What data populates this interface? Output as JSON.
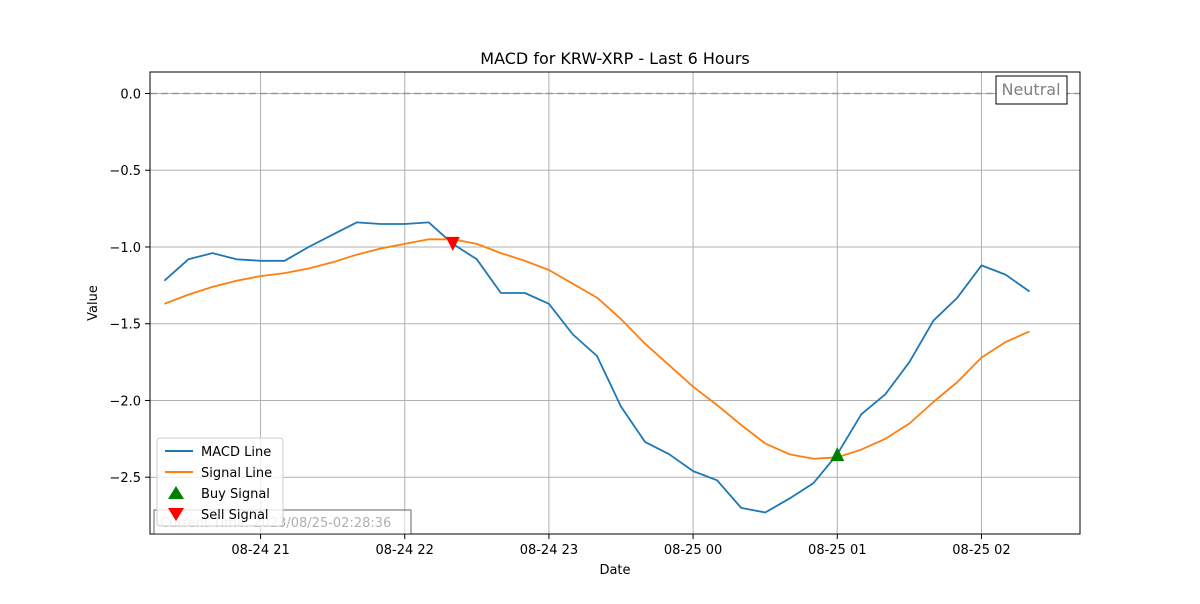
{
  "chart_data": {
    "type": "line",
    "title": "MACD for KRW-XRP - Last 6 Hours",
    "xlabel": "Date",
    "ylabel": "Value",
    "ylim": [
      -2.87,
      0.14
    ],
    "xlim": [
      "2023-08-24 20:14",
      "2023-08-25 02:41"
    ],
    "grid": true,
    "legend_position": "lower-left",
    "x_ticks": [
      "08-24 21",
      "08-24 22",
      "08-24 23",
      "08-25 00",
      "08-25 01",
      "08-25 02"
    ],
    "y_ticks": [
      "0.0",
      "−0.5",
      "−1.0",
      "−1.5",
      "−2.0",
      "−2.5"
    ],
    "zero_line": {
      "value": 0.0,
      "style": "dashed",
      "color": "#999999"
    },
    "x": [
      "2023-08-24 20:20",
      "2023-08-24 20:30",
      "2023-08-24 20:40",
      "2023-08-24 20:50",
      "2023-08-24 21:00",
      "2023-08-24 21:10",
      "2023-08-24 21:20",
      "2023-08-24 21:30",
      "2023-08-24 21:40",
      "2023-08-24 21:50",
      "2023-08-24 22:00",
      "2023-08-24 22:10",
      "2023-08-24 22:20",
      "2023-08-24 22:30",
      "2023-08-24 22:40",
      "2023-08-24 22:50",
      "2023-08-24 23:00",
      "2023-08-24 23:10",
      "2023-08-24 23:20",
      "2023-08-24 23:30",
      "2023-08-24 23:40",
      "2023-08-24 23:50",
      "2023-08-25 00:00",
      "2023-08-25 00:10",
      "2023-08-25 00:20",
      "2023-08-25 00:30",
      "2023-08-25 00:40",
      "2023-08-25 00:50",
      "2023-08-25 01:00",
      "2023-08-25 01:10",
      "2023-08-25 01:20",
      "2023-08-25 01:30",
      "2023-08-25 01:40",
      "2023-08-25 01:50",
      "2023-08-25 02:00",
      "2023-08-25 02:10",
      "2023-08-25 02:20"
    ],
    "series": [
      {
        "name": "MACD Line",
        "color": "#1f77b4",
        "values": [
          -1.22,
          -1.08,
          -1.04,
          -1.08,
          -1.09,
          -1.09,
          -1.0,
          -0.92,
          -0.84,
          -0.85,
          -0.85,
          -0.84,
          -0.98,
          -1.08,
          -1.3,
          -1.3,
          -1.37,
          -1.57,
          -1.71,
          -2.04,
          -2.27,
          -2.35,
          -2.46,
          -2.52,
          -2.7,
          -2.73,
          -2.64,
          -2.54,
          -2.35,
          -2.09,
          -1.96,
          -1.75,
          -1.48,
          -1.33,
          -1.12,
          -1.18,
          -1.29
        ]
      },
      {
        "name": "Signal Line",
        "color": "#ff7f0e",
        "values": [
          -1.37,
          -1.31,
          -1.26,
          -1.22,
          -1.19,
          -1.17,
          -1.14,
          -1.1,
          -1.05,
          -1.01,
          -0.98,
          -0.95,
          -0.95,
          -0.98,
          -1.04,
          -1.09,
          -1.15,
          -1.24,
          -1.33,
          -1.47,
          -1.63,
          -1.77,
          -1.91,
          -2.03,
          -2.16,
          -2.28,
          -2.35,
          -2.38,
          -2.37,
          -2.32,
          -2.25,
          -2.15,
          -2.01,
          -1.88,
          -1.72,
          -1.62,
          -1.55
        ]
      }
    ],
    "markers": [
      {
        "name": "Buy Signal",
        "shape": "triangle-up",
        "color": "#008000",
        "x": "2023-08-25 01:00",
        "y": -2.35
      },
      {
        "name": "Sell Signal",
        "shape": "triangle-down",
        "color": "#ff0000",
        "x": "2023-08-24 22:20",
        "y": -0.98
      }
    ],
    "legend": [
      "MACD Line",
      "Signal Line",
      "Buy Signal",
      "Sell Signal"
    ],
    "annotations": {
      "status_box": "Neutral",
      "current_time": "Current Time: 2023/08/25-02:28:36"
    }
  }
}
